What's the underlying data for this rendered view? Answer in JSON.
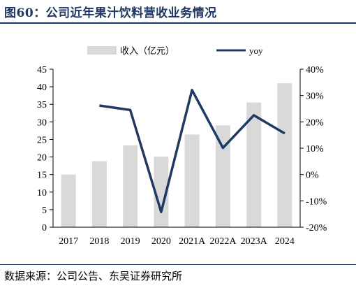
{
  "figure_title": "图60：公司近年果汁饮料营收业务情况",
  "source_note": "数据来源：公司公告、东吴证券研究所",
  "colors": {
    "bar": "#d9d9d9",
    "line": "#1f3864",
    "title": "#1f3864",
    "axis": "#000000"
  },
  "chart_data": {
    "type": "bar",
    "categories": [
      "2017",
      "2018",
      "2019",
      "2020",
      "2021A",
      "2022A",
      "2023A",
      "2024"
    ],
    "series": [
      {
        "name": "收入（亿元）",
        "type": "bar",
        "axis": "left",
        "values": [
          15.0,
          18.8,
          23.3,
          20.1,
          26.4,
          29.0,
          35.5,
          41.0
        ]
      },
      {
        "name": "yoy",
        "type": "line",
        "axis": "right",
        "values": [
          null,
          26.2,
          24.5,
          -14.2,
          32.1,
          10.1,
          22.5,
          15.6
        ]
      }
    ],
    "left_axis": {
      "min": 0,
      "max": 45,
      "ticks": [
        "0",
        "5",
        "10",
        "15",
        "20",
        "25",
        "30",
        "35",
        "40",
        "45"
      ]
    },
    "right_axis": {
      "min": -20,
      "max": 40,
      "ticks": [
        "-20%",
        "-10%",
        "0%",
        "10%",
        "20%",
        "30%",
        "40%"
      ]
    },
    "legend": {
      "position": "top",
      "bar_label": "收入（亿元）",
      "line_label": "yoy"
    },
    "grid": false
  }
}
